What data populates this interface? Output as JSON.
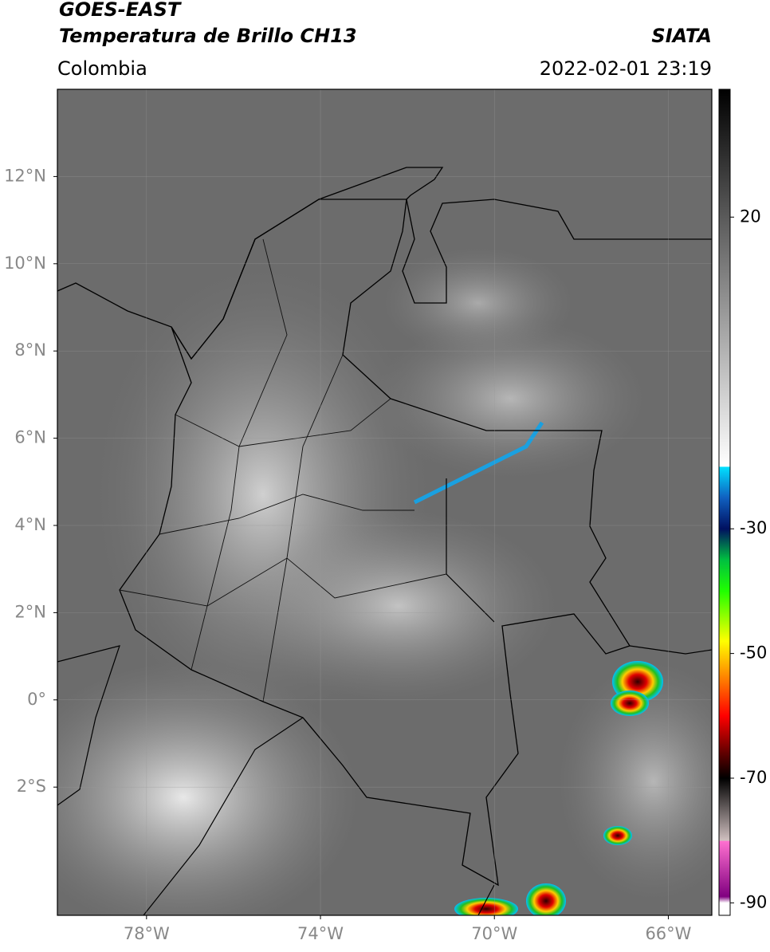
{
  "header": {
    "title": "GOES-EAST",
    "subtitle": "Temperatura de Brillo CH13",
    "source": "SIATA",
    "region": "Colombia",
    "datetime": "2022-02-01 23:19"
  },
  "map": {
    "xlim": [
      -80.05,
      -65
    ],
    "ylim": [
      -4.94,
      14
    ],
    "xticks": [
      {
        "value": -78,
        "label": "78°W"
      },
      {
        "value": -74,
        "label": "74°W"
      },
      {
        "value": -70,
        "label": "70°W"
      },
      {
        "value": -66,
        "label": "66°W"
      }
    ],
    "yticks": [
      {
        "value": 12,
        "label": "12°N"
      },
      {
        "value": 10,
        "label": "10°N"
      },
      {
        "value": 8,
        "label": "8°N"
      },
      {
        "value": 6,
        "label": "6°N"
      },
      {
        "value": 4,
        "label": "4°N"
      },
      {
        "value": 2,
        "label": "2°N"
      },
      {
        "value": 0,
        "label": "0°"
      },
      {
        "value": -2,
        "label": "2°S"
      }
    ],
    "grid": true
  },
  "colorbar": {
    "clim": [
      -92,
      40.5
    ],
    "ticks": [
      20,
      -30,
      -50,
      -70,
      -90
    ],
    "colormap": [
      {
        "value": 40.5,
        "color": "#000000"
      },
      {
        "value": 20,
        "color": "#5a5a5a"
      },
      {
        "value": -20,
        "color": "#ffffff"
      },
      {
        "value": -20.1,
        "color": "#00e0ff"
      },
      {
        "value": -25,
        "color": "#1060c0"
      },
      {
        "value": -30,
        "color": "#001060"
      },
      {
        "value": -35,
        "color": "#00c040"
      },
      {
        "value": -40,
        "color": "#20ff00"
      },
      {
        "value": -48,
        "color": "#ffff00"
      },
      {
        "value": -54,
        "color": "#ff8000"
      },
      {
        "value": -60,
        "color": "#ff0000"
      },
      {
        "value": -66,
        "color": "#600000"
      },
      {
        "value": -70,
        "color": "#000000"
      },
      {
        "value": -80,
        "color": "#d0c0c0"
      },
      {
        "value": -80.1,
        "color": "#ff70d0"
      },
      {
        "value": -89,
        "color": "#800080"
      },
      {
        "value": -90,
        "color": "#ffffff"
      }
    ]
  }
}
